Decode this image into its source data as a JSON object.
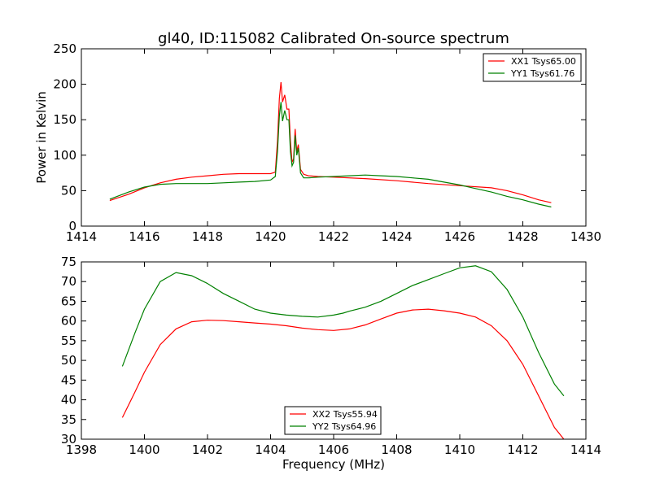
{
  "title": "gl40, ID:115082 Calibrated On-source spectrum",
  "chart_data": [
    {
      "type": "line",
      "name": "top-panel",
      "ylabel": "Power in Kelvin",
      "xlabel": "",
      "xlim": [
        1414,
        1430
      ],
      "ylim": [
        0,
        250
      ],
      "xticks": [
        1414,
        1416,
        1418,
        1420,
        1422,
        1424,
        1426,
        1428,
        1430
      ],
      "yticks": [
        0,
        50,
        100,
        150,
        200,
        250
      ],
      "legend_position": "top-right",
      "series": [
        {
          "name": "XX1 Tsys65.00",
          "color": "#ff0000",
          "x": [
            1414.9,
            1415.5,
            1416,
            1416.5,
            1417,
            1417.5,
            1418,
            1418.5,
            1419,
            1419.5,
            1420,
            1420.15,
            1420.22,
            1420.28,
            1420.33,
            1420.38,
            1420.45,
            1420.52,
            1420.58,
            1420.63,
            1420.68,
            1420.73,
            1420.78,
            1420.83,
            1420.88,
            1420.95,
            1421.05,
            1421.2,
            1421.5,
            1422,
            1423,
            1424,
            1425,
            1426,
            1427,
            1427.5,
            1428,
            1428.5,
            1428.9
          ],
          "y": [
            36,
            45,
            54,
            61,
            66,
            69,
            71,
            73,
            74,
            74,
            74,
            76,
            120,
            180,
            203,
            175,
            185,
            165,
            165,
            120,
            90,
            95,
            137,
            105,
            115,
            80,
            73,
            71,
            70,
            69,
            67,
            64,
            60,
            57,
            54,
            50,
            44,
            37,
            33
          ]
        },
        {
          "name": "YY1 Tsys61.76",
          "color": "#008000",
          "x": [
            1414.9,
            1415.5,
            1416,
            1416.5,
            1417,
            1417.5,
            1418,
            1418.5,
            1419,
            1419.5,
            1420,
            1420.15,
            1420.22,
            1420.28,
            1420.33,
            1420.38,
            1420.45,
            1420.52,
            1420.58,
            1420.63,
            1420.68,
            1420.73,
            1420.78,
            1420.83,
            1420.88,
            1420.95,
            1421.05,
            1421.2,
            1421.5,
            1422,
            1422.5,
            1423,
            1423.5,
            1424,
            1424.5,
            1425,
            1425.5,
            1426,
            1426.5,
            1427,
            1427.5,
            1428,
            1428.5,
            1428.9
          ],
          "y": [
            38,
            48,
            55,
            59,
            60,
            60,
            60,
            61,
            62,
            63,
            65,
            70,
            105,
            155,
            175,
            148,
            163,
            150,
            150,
            105,
            85,
            90,
            128,
            100,
            110,
            75,
            68,
            68,
            69,
            70,
            71,
            72,
            71,
            70,
            68,
            66,
            62,
            58,
            53,
            48,
            42,
            37,
            31,
            27
          ]
        }
      ]
    },
    {
      "type": "line",
      "name": "bottom-panel",
      "ylabel": "",
      "xlabel": "Frequency (MHz)",
      "xlim": [
        1398,
        1414
      ],
      "ylim": [
        30,
        75
      ],
      "xticks": [
        1398,
        1400,
        1402,
        1404,
        1406,
        1408,
        1410,
        1412,
        1414
      ],
      "yticks": [
        30,
        35,
        40,
        45,
        50,
        55,
        60,
        65,
        70,
        75
      ],
      "legend_position": "bottom-center",
      "series": [
        {
          "name": "XX2 Tsys55.94",
          "color": "#ff0000",
          "x": [
            1399.3,
            1399.7,
            1400,
            1400.5,
            1401,
            1401.5,
            1402,
            1402.5,
            1403,
            1403.5,
            1404,
            1404.5,
            1405,
            1405.5,
            1406,
            1406.5,
            1407,
            1407.5,
            1408,
            1408.5,
            1409,
            1409.5,
            1410,
            1410.5,
            1411,
            1411.5,
            1412,
            1412.5,
            1413,
            1413.3
          ],
          "y": [
            35.5,
            42,
            47,
            54,
            58,
            59.8,
            60.2,
            60.1,
            59.8,
            59.5,
            59.2,
            58.8,
            58.2,
            57.8,
            57.6,
            58,
            59,
            60.5,
            62,
            62.8,
            63,
            62.6,
            62,
            61,
            58.8,
            55,
            49,
            41,
            33,
            30
          ]
        },
        {
          "name": "YY2 Tsys64.96",
          "color": "#008000",
          "x": [
            1399.3,
            1399.7,
            1400,
            1400.5,
            1401,
            1401.5,
            1402,
            1402.5,
            1403,
            1403.5,
            1404,
            1404.5,
            1405,
            1405.5,
            1406,
            1406.3,
            1406.5,
            1407,
            1407.5,
            1408,
            1408.5,
            1409,
            1409.5,
            1410,
            1410.5,
            1411,
            1411.5,
            1412,
            1412.5,
            1413,
            1413.3
          ],
          "y": [
            48.5,
            57,
            63,
            70,
            72.3,
            71.5,
            69.5,
            67,
            65,
            63,
            62,
            61.5,
            61.2,
            61,
            61.5,
            62,
            62.5,
            63.5,
            65,
            67,
            69,
            70.5,
            72,
            73.5,
            74,
            72.5,
            68,
            61,
            52,
            44,
            41
          ]
        }
      ]
    }
  ]
}
